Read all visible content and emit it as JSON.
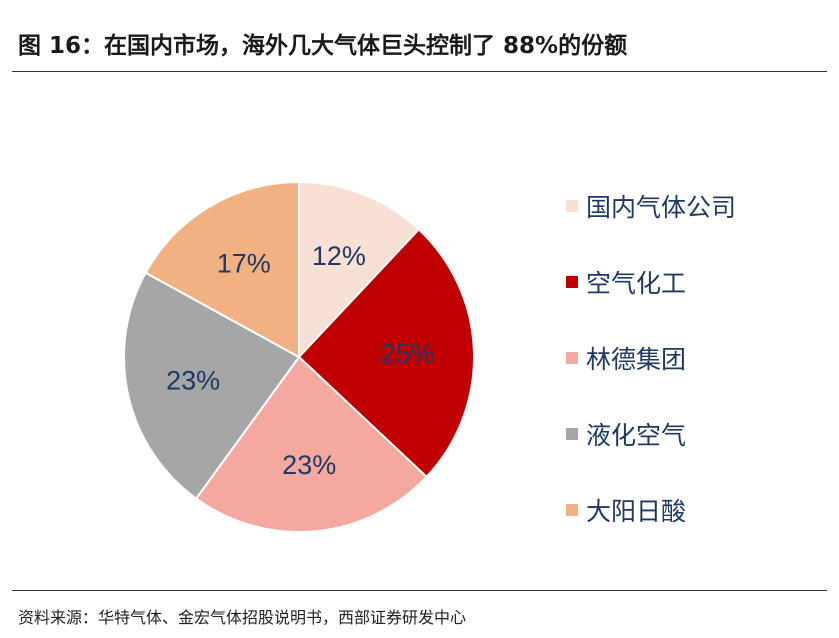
{
  "title": "图 16：在国内市场，海外几大气体巨头控制了 88%的份额",
  "source": "资料来源：华特气体、金宏气体招股说明书，西部证券研发中心",
  "chart_data": {
    "type": "pie",
    "unit": "%",
    "slices": [
      {
        "name": "国内气体公司",
        "value": 12,
        "label": "12%",
        "color": "#f8e0d4"
      },
      {
        "name": "空气化工",
        "value": 25,
        "label": "25%",
        "color": "#c00000"
      },
      {
        "name": "林德集团",
        "value": 23,
        "label": "23%",
        "color": "#f4a8a0"
      },
      {
        "name": "液化空气",
        "value": 23,
        "label": "23%",
        "color": "#a6a6a6"
      },
      {
        "name": "大阳日酸",
        "value": 17,
        "label": "17%",
        "color": "#f2b183"
      }
    ],
    "legend_position": "right"
  }
}
